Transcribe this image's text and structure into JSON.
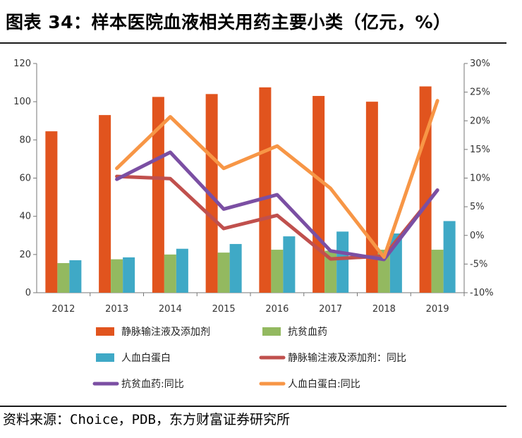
{
  "title": "图表 34：样本医院血液相关用药主要小类（亿元，%）",
  "source": "资料来源：Choice，PDB，东方财富证券研究所",
  "chart_data": {
    "type": "bar",
    "categories": [
      "2012",
      "2013",
      "2014",
      "2015",
      "2016",
      "2017",
      "2018",
      "2019"
    ],
    "y_left": {
      "ticks": [
        "0",
        "20",
        "40",
        "60",
        "80",
        "100",
        "120"
      ],
      "ylim": [
        0,
        120
      ]
    },
    "y_right": {
      "ticks": [
        "-10%",
        "-5%",
        "0%",
        "5%",
        "10%",
        "15%",
        "20%",
        "25%",
        "30%"
      ],
      "ylim": [
        -10,
        30
      ]
    },
    "bar_series": [
      {
        "name": "静脉输注液及添加剂",
        "color": "#e1541e",
        "values": [
          84.5,
          93,
          102.5,
          104,
          107.5,
          103,
          100,
          108
        ]
      },
      {
        "name": "抗贫血药",
        "color": "#93b960",
        "values": [
          15.5,
          17.5,
          20,
          21,
          22.5,
          22,
          22.5,
          22.5
        ]
      },
      {
        "name": "人血白蛋白",
        "color": "#3fa9c6",
        "values": [
          17,
          18.5,
          23,
          25.5,
          29.5,
          32,
          31,
          37.5
        ]
      }
    ],
    "line_series": [
      {
        "name": "静脉输注液及添加剂：同比",
        "color": "#c0504d",
        "values": [
          null,
          10.3,
          9.9,
          1.2,
          3.5,
          -4.1,
          -3.6,
          7.9
        ]
      },
      {
        "name": "抗贫血药:同比",
        "color": "#7b4fa3",
        "values": [
          null,
          9.8,
          14.5,
          4.6,
          7.1,
          -2.7,
          -4.2,
          7.9
        ]
      },
      {
        "name": "人血白蛋白:同比",
        "color": "#f79646",
        "values": [
          null,
          11.7,
          20.7,
          11.7,
          15.6,
          8.2,
          -3.8,
          23.5
        ]
      }
    ],
    "legend": "bottom"
  }
}
